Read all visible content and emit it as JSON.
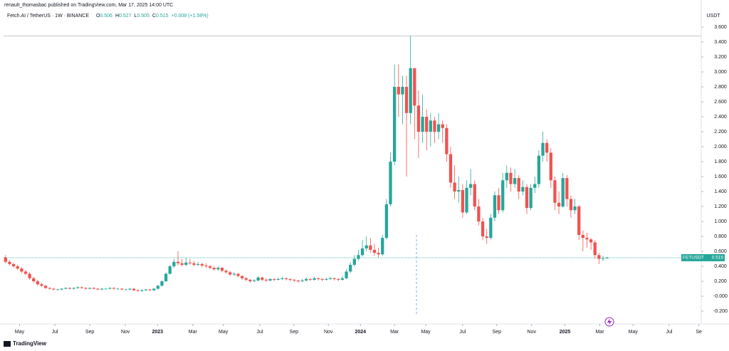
{
  "chart_data": {
    "type": "candlestick",
    "title": "renault_thomasbac published on TradingView.com, Mar 17, 2025 14:00 UTC",
    "subtitle": "Fetch.AI / TetherUS · 1W · BINANCE",
    "ohlc_legend": [
      {
        "label": "O",
        "value": "0.506"
      },
      {
        "label": "H",
        "value": "0.527"
      },
      {
        "label": "L",
        "value": "0.505"
      },
      {
        "label": "C",
        "value": "0.515"
      }
    ],
    "change": "+0.008 (+1.58%)",
    "y_unit": "USDT",
    "footer": "TradingView",
    "up_color": "#26a69a",
    "down_color": "#ef5350",
    "last_price": {
      "symbol": "FETUSDT",
      "value": 0.515
    },
    "ylim": [
      -0.371,
      3.962
    ],
    "yticks": [
      {
        "value": 3.6,
        "label": "3.600"
      },
      {
        "value": 3.4,
        "label": "3.400"
      },
      {
        "value": 3.2,
        "label": "3.200"
      },
      {
        "value": 3.0,
        "label": "3.000"
      },
      {
        "value": 2.8,
        "label": "2.800"
      },
      {
        "value": 2.6,
        "label": "2.600"
      },
      {
        "value": 2.4,
        "label": "2.400"
      },
      {
        "value": 2.2,
        "label": "2.200"
      },
      {
        "value": 2.0,
        "label": "2.000"
      },
      {
        "value": 1.8,
        "label": "1.800"
      },
      {
        "value": 1.6,
        "label": "1.600"
      },
      {
        "value": 1.4,
        "label": "1.400"
      },
      {
        "value": 1.2,
        "label": "1.200"
      },
      {
        "value": 1.0,
        "label": "1.000"
      },
      {
        "value": 0.8,
        "label": "0.800"
      },
      {
        "value": 0.6,
        "label": "0.600"
      },
      {
        "value": 0.4,
        "label": "0.400"
      },
      {
        "value": 0.2,
        "label": "0.200"
      },
      {
        "value": 0,
        "label": "-0.000"
      },
      {
        "value": -0.2,
        "label": "-0.200"
      }
    ],
    "xlim": [
      -0.5,
      173.5
    ],
    "xticks": [
      {
        "value": 3.5,
        "label": "May"
      },
      {
        "value": 12.3,
        "label": "Jul"
      },
      {
        "value": 21,
        "label": "Sep"
      },
      {
        "value": 29.9,
        "label": "Nov"
      },
      {
        "value": 37.9,
        "label": "2023"
      },
      {
        "value": 46.7,
        "label": "Mar"
      },
      {
        "value": 54.3,
        "label": "May"
      },
      {
        "value": 63.4,
        "label": "Jul"
      },
      {
        "value": 71.9,
        "label": "Sep"
      },
      {
        "value": 80.5,
        "label": "Nov"
      },
      {
        "value": 88.5,
        "label": "2024"
      },
      {
        "value": 97,
        "label": "Mar"
      },
      {
        "value": 104.8,
        "label": "May"
      },
      {
        "value": 114,
        "label": "Jul"
      },
      {
        "value": 122.5,
        "label": "Sep"
      },
      {
        "value": 131.2,
        "label": "Nov"
      },
      {
        "value": 139.5,
        "label": "2025"
      },
      {
        "value": 148.2,
        "label": "Mar"
      },
      {
        "value": 156.5,
        "label": "May"
      },
      {
        "value": 165.5,
        "label": "Jul"
      },
      {
        "value": 172.9,
        "label": "Se"
      }
    ],
    "series": [
      {
        "name": "FETUSDT",
        "open": [
          0.52,
          0.46,
          0.43,
          0.4,
          0.37,
          0.33,
          0.3,
          0.24,
          0.2,
          0.16,
          0.14,
          0.11,
          0.1,
          0.09,
          0.09,
          0.1,
          0.11,
          0.1,
          0.11,
          0.12,
          0.11,
          0.1,
          0.11,
          0.1,
          0.09,
          0.1,
          0.1,
          0.11,
          0.1,
          0.1,
          0.09,
          0.09,
          0.1,
          0.08,
          0.07,
          0.08,
          0.09,
          0.08,
          0.1,
          0.14,
          0.2,
          0.3,
          0.4,
          0.46,
          0.44,
          0.42,
          0.45,
          0.44,
          0.42,
          0.43,
          0.41,
          0.4,
          0.38,
          0.36,
          0.38,
          0.34,
          0.32,
          0.29,
          0.3,
          0.27,
          0.24,
          0.22,
          0.2,
          0.21,
          0.25,
          0.22,
          0.21,
          0.23,
          0.22,
          0.23,
          0.24,
          0.23,
          0.22,
          0.21,
          0.2,
          0.21,
          0.23,
          0.22,
          0.24,
          0.23,
          0.22,
          0.23,
          0.24,
          0.23,
          0.22,
          0.24,
          0.33,
          0.42,
          0.5,
          0.55,
          0.64,
          0.68,
          0.62,
          0.58,
          0.56,
          0.78,
          1.23,
          1.8,
          2.8,
          2.7,
          2.8,
          2.45,
          3.05,
          2.55,
          2.2,
          2.4,
          2.2,
          2.35,
          2.2,
          2.3,
          2.25,
          1.9,
          1.52,
          1.4,
          1.42,
          1.12,
          1.45,
          1.5,
          1.2,
          1.0,
          0.8,
          0.78,
          1.05,
          1.35,
          1.15,
          1.55,
          1.65,
          1.5,
          1.58,
          1.4,
          1.46,
          1.18,
          1.45,
          1.5,
          1.88,
          2.05,
          1.92,
          1.55,
          1.25,
          1.2,
          1.58,
          1.3,
          1.15,
          1.2,
          0.82,
          0.78,
          0.76,
          0.72,
          0.55,
          0.5,
          0.506
        ],
        "high": [
          0.55,
          0.48,
          0.45,
          0.42,
          0.39,
          0.35,
          0.32,
          0.26,
          0.22,
          0.18,
          0.15,
          0.12,
          0.11,
          0.1,
          0.11,
          0.12,
          0.12,
          0.12,
          0.13,
          0.13,
          0.12,
          0.12,
          0.12,
          0.11,
          0.11,
          0.11,
          0.12,
          0.12,
          0.11,
          0.11,
          0.1,
          0.11,
          0.11,
          0.09,
          0.09,
          0.1,
          0.1,
          0.11,
          0.15,
          0.21,
          0.32,
          0.42,
          0.5,
          0.6,
          0.5,
          0.52,
          0.5,
          0.47,
          0.46,
          0.45,
          0.44,
          0.42,
          0.4,
          0.4,
          0.39,
          0.36,
          0.34,
          0.32,
          0.31,
          0.28,
          0.26,
          0.23,
          0.23,
          0.27,
          0.26,
          0.24,
          0.24,
          0.24,
          0.25,
          0.26,
          0.25,
          0.24,
          0.23,
          0.22,
          0.23,
          0.25,
          0.24,
          0.26,
          0.25,
          0.24,
          0.25,
          0.26,
          0.25,
          0.24,
          0.27,
          0.36,
          0.45,
          0.55,
          0.62,
          0.75,
          0.8,
          0.78,
          0.7,
          0.65,
          0.82,
          1.3,
          1.92,
          3.1,
          3.1,
          2.95,
          2.95,
          3.48,
          3.05,
          2.75,
          2.7,
          2.5,
          2.45,
          2.4,
          2.45,
          2.35,
          2.3,
          2.0,
          1.75,
          1.6,
          1.5,
          1.55,
          1.7,
          1.55,
          1.3,
          1.05,
          0.9,
          1.1,
          1.4,
          1.45,
          1.65,
          1.75,
          1.72,
          1.7,
          1.62,
          1.55,
          1.5,
          1.5,
          1.6,
          1.95,
          2.2,
          2.1,
          1.98,
          1.6,
          1.4,
          1.65,
          1.62,
          1.35,
          1.3,
          1.22,
          0.88,
          0.85,
          0.78,
          0.75,
          0.58,
          0.54,
          0.527
        ],
        "low": [
          0.44,
          0.41,
          0.38,
          0.35,
          0.31,
          0.28,
          0.22,
          0.18,
          0.14,
          0.12,
          0.1,
          0.09,
          0.08,
          0.08,
          0.08,
          0.09,
          0.09,
          0.09,
          0.1,
          0.1,
          0.09,
          0.09,
          0.09,
          0.08,
          0.08,
          0.09,
          0.09,
          0.09,
          0.09,
          0.08,
          0.08,
          0.08,
          0.07,
          0.06,
          0.06,
          0.07,
          0.07,
          0.07,
          0.09,
          0.13,
          0.19,
          0.29,
          0.38,
          0.41,
          0.4,
          0.4,
          0.42,
          0.4,
          0.4,
          0.39,
          0.38,
          0.36,
          0.34,
          0.34,
          0.32,
          0.3,
          0.27,
          0.27,
          0.25,
          0.22,
          0.2,
          0.18,
          0.19,
          0.2,
          0.2,
          0.19,
          0.2,
          0.2,
          0.21,
          0.22,
          0.21,
          0.2,
          0.19,
          0.18,
          0.19,
          0.2,
          0.2,
          0.21,
          0.21,
          0.2,
          0.21,
          0.22,
          0.21,
          0.2,
          0.21,
          0.23,
          0.31,
          0.4,
          0.48,
          0.53,
          0.6,
          0.58,
          0.54,
          0.52,
          0.54,
          0.76,
          1.2,
          1.75,
          2.4,
          2.3,
          1.6,
          2.3,
          2.1,
          1.85,
          2.05,
          1.95,
          2.0,
          2.05,
          2.1,
          2.05,
          1.8,
          1.45,
          1.3,
          1.25,
          1.05,
          1.1,
          1.35,
          1.15,
          0.95,
          0.75,
          0.7,
          0.76,
          1.0,
          1.1,
          1.12,
          1.45,
          1.4,
          1.45,
          1.3,
          1.35,
          1.1,
          1.15,
          1.38,
          1.45,
          1.8,
          1.8,
          1.45,
          1.15,
          1.1,
          1.18,
          1.2,
          1.05,
          1.1,
          0.75,
          0.6,
          0.65,
          0.62,
          0.5,
          0.43,
          0.47,
          0.505
        ],
        "close": [
          0.46,
          0.43,
          0.4,
          0.37,
          0.33,
          0.3,
          0.24,
          0.2,
          0.16,
          0.14,
          0.11,
          0.1,
          0.09,
          0.09,
          0.1,
          0.11,
          0.1,
          0.11,
          0.12,
          0.11,
          0.1,
          0.11,
          0.1,
          0.09,
          0.1,
          0.1,
          0.11,
          0.1,
          0.1,
          0.09,
          0.09,
          0.1,
          0.08,
          0.07,
          0.08,
          0.09,
          0.08,
          0.1,
          0.14,
          0.2,
          0.3,
          0.4,
          0.46,
          0.44,
          0.42,
          0.45,
          0.44,
          0.42,
          0.43,
          0.41,
          0.4,
          0.38,
          0.36,
          0.38,
          0.34,
          0.32,
          0.29,
          0.3,
          0.27,
          0.24,
          0.22,
          0.2,
          0.21,
          0.25,
          0.22,
          0.21,
          0.23,
          0.22,
          0.23,
          0.24,
          0.23,
          0.22,
          0.21,
          0.2,
          0.21,
          0.23,
          0.22,
          0.24,
          0.23,
          0.22,
          0.23,
          0.24,
          0.23,
          0.22,
          0.24,
          0.33,
          0.42,
          0.5,
          0.55,
          0.64,
          0.68,
          0.62,
          0.58,
          0.56,
          0.78,
          1.23,
          1.8,
          2.8,
          2.7,
          2.8,
          2.45,
          3.05,
          2.55,
          2.2,
          2.4,
          2.2,
          2.35,
          2.2,
          2.3,
          2.25,
          1.9,
          1.52,
          1.4,
          1.42,
          1.12,
          1.45,
          1.5,
          1.2,
          1.0,
          0.8,
          0.78,
          1.05,
          1.35,
          1.15,
          1.55,
          1.65,
          1.5,
          1.58,
          1.4,
          1.46,
          1.18,
          1.45,
          1.5,
          1.88,
          2.05,
          1.92,
          1.55,
          1.25,
          1.2,
          1.58,
          1.3,
          1.15,
          1.2,
          0.82,
          0.78,
          0.76,
          0.72,
          0.55,
          0.5,
          0.506,
          0.515
        ]
      }
    ]
  }
}
